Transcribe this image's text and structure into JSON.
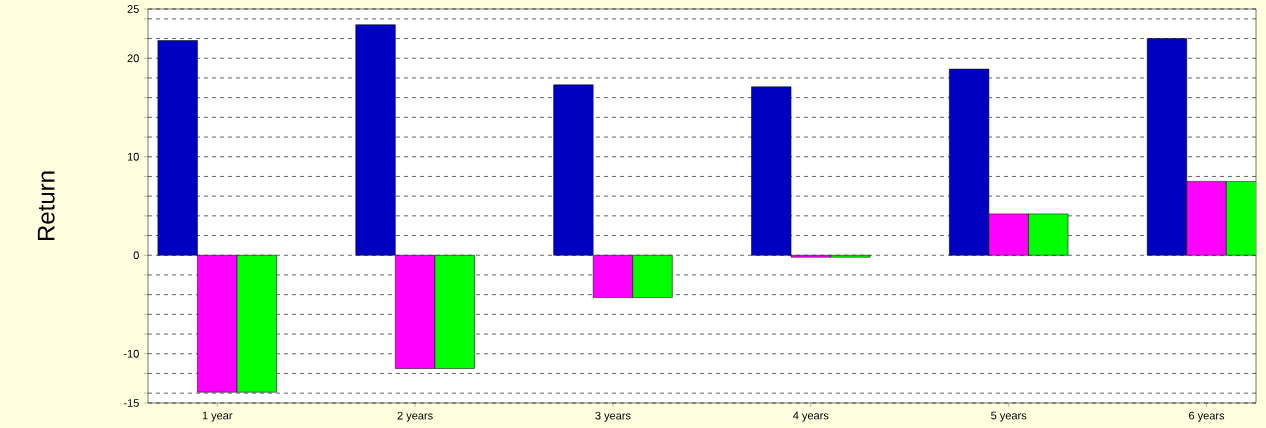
{
  "chart_data": {
    "type": "bar",
    "ylabel": "Return",
    "categories": [
      "1 year",
      "2 years",
      "3 years",
      "4 years",
      "5 years",
      "6 years"
    ],
    "series": [
      {
        "color": "#0000c0",
        "values": [
          21.8,
          23.4,
          17.3,
          17.1,
          18.9,
          22.0
        ]
      },
      {
        "color": "#ff00ff",
        "values": [
          -13.9,
          -11.5,
          -4.3,
          -0.2,
          4.2,
          7.5
        ]
      },
      {
        "color": "#00ff00",
        "values": [
          -13.9,
          -11.5,
          -4.3,
          -0.2,
          4.2,
          7.5
        ]
      }
    ],
    "ylim": [
      -15,
      25
    ],
    "yticks": [
      -15,
      {
        "value": -14,
        "label": null
      },
      {
        "value": -12,
        "label": null
      },
      -10,
      {
        "value": -8,
        "label": null
      },
      {
        "value": -6,
        "label": null
      },
      {
        "value": -4,
        "label": null
      },
      {
        "value": -2,
        "label": null
      },
      0,
      {
        "value": 2,
        "label": null
      },
      {
        "value": 4,
        "label": null
      },
      {
        "value": 6,
        "label": null
      },
      {
        "value": 8,
        "label": null
      },
      10,
      {
        "value": 12,
        "label": null
      },
      {
        "value": 14,
        "label": null
      },
      {
        "value": 16,
        "label": null
      },
      {
        "value": 18,
        "label": null
      },
      20,
      {
        "value": 22,
        "label": null
      },
      {
        "value": 24,
        "label": null
      },
      25
    ],
    "grid": "y"
  }
}
